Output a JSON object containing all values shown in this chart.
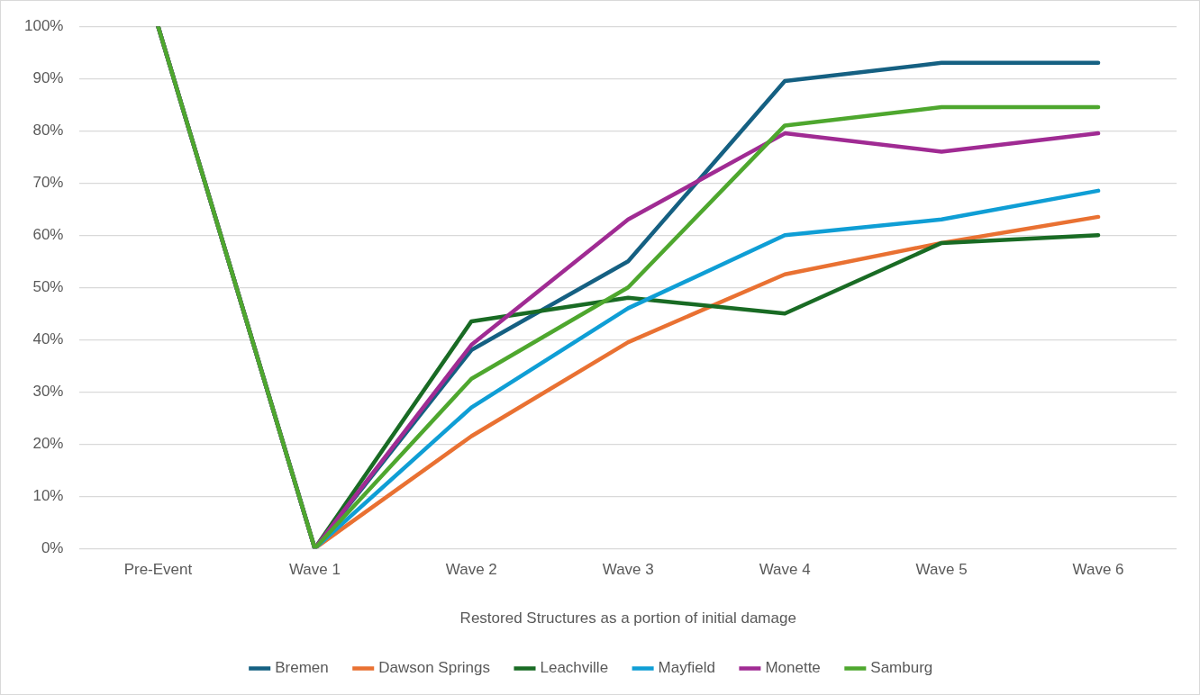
{
  "chart_data": {
    "type": "line",
    "xlabel": "Restored Structures as a portion of initial damage",
    "categories": [
      "Pre-Event",
      "Wave 1",
      "Wave 2",
      "Wave 3",
      "Wave 4",
      "Wave 5",
      "Wave 6"
    ],
    "series": [
      {
        "name": "Bremen",
        "color": "#156082",
        "values": [
          100,
          0,
          38,
          55,
          89.5,
          93,
          93
        ]
      },
      {
        "name": "Dawson Springs",
        "color": "#e97132",
        "values": [
          100,
          0,
          21.5,
          39.5,
          52.5,
          58.5,
          63.5
        ]
      },
      {
        "name": "Leachville",
        "color": "#196b24",
        "values": [
          100,
          0,
          43.5,
          48,
          45,
          58.5,
          60
        ]
      },
      {
        "name": "Mayfield",
        "color": "#0f9ed5",
        "values": [
          100,
          0,
          27,
          46,
          60,
          63,
          68.5
        ]
      },
      {
        "name": "Monette",
        "color": "#a02b93",
        "values": [
          100,
          0,
          39,
          63,
          79.5,
          76,
          79.5
        ]
      },
      {
        "name": "Samburg",
        "color": "#4ea72e",
        "values": [
          100,
          0,
          32.5,
          50,
          81,
          84.5,
          84.5
        ]
      }
    ],
    "ylim": [
      0,
      100
    ],
    "yticks": [
      {
        "value": 0,
        "label": "0%"
      },
      {
        "value": 10,
        "label": "10%"
      },
      {
        "value": 20,
        "label": "20%"
      },
      {
        "value": 30,
        "label": "30%"
      },
      {
        "value": 40,
        "label": "40%"
      },
      {
        "value": 50,
        "label": "50%"
      },
      {
        "value": 60,
        "label": "60%"
      },
      {
        "value": 70,
        "label": "70%"
      },
      {
        "value": 80,
        "label": "80%"
      },
      {
        "value": 90,
        "label": "90%"
      },
      {
        "value": 100,
        "label": "100%"
      }
    ],
    "grid": "y",
    "legend": "bottom",
    "marker": "none",
    "line_style": "solid"
  }
}
